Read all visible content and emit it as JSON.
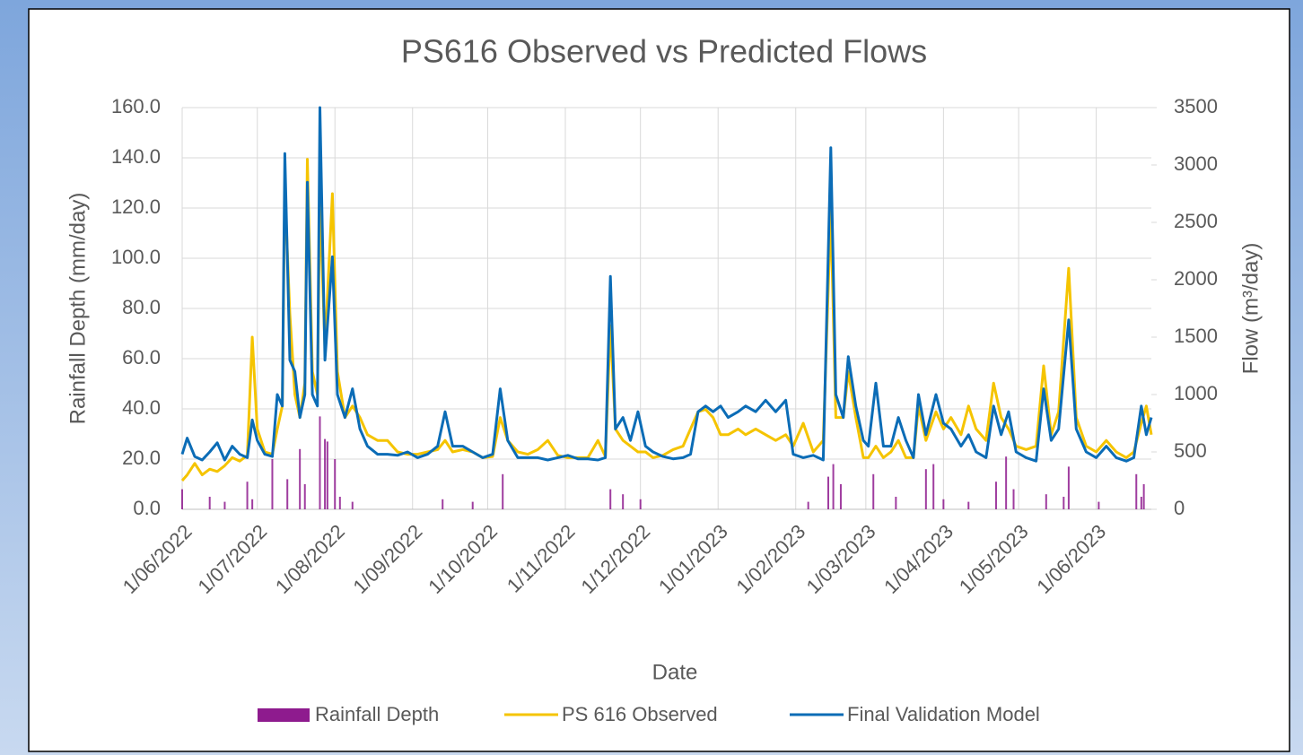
{
  "chart_data": {
    "type": "line",
    "title": "PS616 Observed vs Predicted Flows",
    "x_label": "Date",
    "y_label": "Rainfall Depth (mm/day)",
    "y2_label": "Flow (m³/day)",
    "xlim": [
      "2022-06-01",
      "2023-06-23"
    ],
    "xticks": [
      {
        "value": "2022-06-01",
        "label": "1/06/2022"
      },
      {
        "value": "2022-07-01",
        "label": "1/07/2022"
      },
      {
        "value": "2022-08-01",
        "label": "1/08/2022"
      },
      {
        "value": "2022-09-01",
        "label": "1/09/2022"
      },
      {
        "value": "2022-10-01",
        "label": "1/10/2022"
      },
      {
        "value": "2022-11-01",
        "label": "1/11/2022"
      },
      {
        "value": "2022-12-01",
        "label": "1/12/2022"
      },
      {
        "value": "2023-01-01",
        "label": "1/01/2023"
      },
      {
        "value": "2023-02-01",
        "label": "1/02/2023"
      },
      {
        "value": "2023-03-01",
        "label": "1/03/2023"
      },
      {
        "value": "2023-04-01",
        "label": "1/04/2023"
      },
      {
        "value": "2023-05-01",
        "label": "1/05/2023"
      },
      {
        "value": "2023-06-01",
        "label": "1/06/2023"
      }
    ],
    "ylim": [
      0,
      160
    ],
    "yticks": [
      {
        "value": 0,
        "label": "0.0"
      },
      {
        "value": 20,
        "label": "20.0"
      },
      {
        "value": 40,
        "label": "40.0"
      },
      {
        "value": 60,
        "label": "60.0"
      },
      {
        "value": 80,
        "label": "80.0"
      },
      {
        "value": 100,
        "label": "100.0"
      },
      {
        "value": 120,
        "label": "120.0"
      },
      {
        "value": 140,
        "label": "140.0"
      },
      {
        "value": 160,
        "label": "160.0"
      }
    ],
    "y2lim": [
      0,
      3500
    ],
    "y2ticks": [
      0,
      500,
      1000,
      1500,
      2000,
      2500,
      3000,
      3500
    ],
    "grid": true,
    "legend": "bottom",
    "x": [
      "2022-06-01",
      "2022-06-03",
      "2022-06-06",
      "2022-06-09",
      "2022-06-12",
      "2022-06-15",
      "2022-06-18",
      "2022-06-21",
      "2022-06-24",
      "2022-06-27",
      "2022-06-29",
      "2022-07-01",
      "2022-07-04",
      "2022-07-07",
      "2022-07-09",
      "2022-07-11",
      "2022-07-12",
      "2022-07-14",
      "2022-07-16",
      "2022-07-18",
      "2022-07-20",
      "2022-07-21",
      "2022-07-23",
      "2022-07-25",
      "2022-07-26",
      "2022-07-28",
      "2022-07-31",
      "2022-08-02",
      "2022-08-05",
      "2022-08-08",
      "2022-08-11",
      "2022-08-14",
      "2022-08-18",
      "2022-08-22",
      "2022-08-26",
      "2022-08-30",
      "2022-09-03",
      "2022-09-07",
      "2022-09-11",
      "2022-09-14",
      "2022-09-17",
      "2022-09-21",
      "2022-09-25",
      "2022-09-29",
      "2022-10-03",
      "2022-10-06",
      "2022-10-09",
      "2022-10-13",
      "2022-10-17",
      "2022-10-21",
      "2022-10-25",
      "2022-10-29",
      "2022-11-02",
      "2022-11-06",
      "2022-11-10",
      "2022-11-14",
      "2022-11-17",
      "2022-11-19",
      "2022-11-21",
      "2022-11-24",
      "2022-11-27",
      "2022-11-30",
      "2022-12-03",
      "2022-12-06",
      "2022-12-10",
      "2022-12-14",
      "2022-12-18",
      "2022-12-21",
      "2022-12-24",
      "2022-12-27",
      "2022-12-30",
      "2023-01-02",
      "2023-01-05",
      "2023-01-09",
      "2023-01-12",
      "2023-01-16",
      "2023-01-20",
      "2023-01-24",
      "2023-01-28",
      "2023-01-31",
      "2023-02-04",
      "2023-02-08",
      "2023-02-12",
      "2023-02-15",
      "2023-02-17",
      "2023-02-20",
      "2023-02-22",
      "2023-02-25",
      "2023-02-28",
      "2023-03-02",
      "2023-03-05",
      "2023-03-08",
      "2023-03-11",
      "2023-03-14",
      "2023-03-17",
      "2023-03-20",
      "2023-03-22",
      "2023-03-25",
      "2023-03-29",
      "2023-04-01",
      "2023-04-04",
      "2023-04-08",
      "2023-04-11",
      "2023-04-14",
      "2023-04-18",
      "2023-04-21",
      "2023-04-24",
      "2023-04-27",
      "2023-04-30",
      "2023-05-04",
      "2023-05-08",
      "2023-05-11",
      "2023-05-14",
      "2023-05-17",
      "2023-05-21",
      "2023-05-24",
      "2023-05-28",
      "2023-06-01",
      "2023-06-05",
      "2023-06-09",
      "2023-06-13",
      "2023-06-16",
      "2023-06-19",
      "2023-06-21",
      "2023-06-23"
    ],
    "series": [
      {
        "name": "Rainfall Depth",
        "type": "bar",
        "color": "#8e1b8e",
        "x": [
          "2022-06-01",
          "2022-06-12",
          "2022-06-18",
          "2022-06-27",
          "2022-06-29",
          "2022-07-07",
          "2022-07-13",
          "2022-07-18",
          "2022-07-20",
          "2022-07-26",
          "2022-07-28",
          "2022-07-29",
          "2022-08-01",
          "2022-08-03",
          "2022-08-08",
          "2022-09-13",
          "2022-09-25",
          "2022-10-07",
          "2022-11-19",
          "2022-11-24",
          "2022-12-01",
          "2023-02-06",
          "2023-02-14",
          "2023-02-16",
          "2023-02-19",
          "2023-03-04",
          "2023-03-13",
          "2023-03-25",
          "2023-03-28",
          "2023-04-01",
          "2023-04-11",
          "2023-04-22",
          "2023-04-26",
          "2023-04-29",
          "2023-05-12",
          "2023-05-19",
          "2023-05-21",
          "2023-06-02",
          "2023-06-17",
          "2023-06-19",
          "2023-06-20"
        ],
        "values": [
          8,
          5,
          3,
          11,
          4,
          20,
          12,
          24,
          10,
          37,
          28,
          27,
          20,
          5,
          3,
          4,
          3,
          14,
          8,
          6,
          4,
          3,
          13,
          18,
          10,
          14,
          5,
          16,
          18,
          4,
          3,
          11,
          21,
          8,
          6,
          5,
          17,
          3,
          14,
          5,
          10
        ]
      },
      {
        "name": "PS 616 Observed",
        "type": "line",
        "axis": "y2",
        "color": "#f5c400",
        "values": [
          250,
          300,
          400,
          300,
          350,
          330,
          380,
          450,
          420,
          470,
          1500,
          700,
          500,
          480,
          700,
          900,
          2800,
          1700,
          1000,
          800,
          1100,
          3050,
          1200,
          1000,
          2700,
          1400,
          2750,
          1200,
          800,
          900,
          800,
          650,
          600,
          600,
          500,
          480,
          480,
          500,
          520,
          600,
          500,
          520,
          500,
          450,
          460,
          800,
          600,
          500,
          480,
          520,
          600,
          470,
          450,
          450,
          450,
          600,
          460,
          1600,
          700,
          600,
          550,
          500,
          500,
          450,
          470,
          520,
          550,
          700,
          850,
          870,
          800,
          650,
          650,
          700,
          650,
          700,
          650,
          600,
          650,
          550,
          750,
          500,
          600,
          2600,
          800,
          800,
          1200,
          800,
          450,
          450,
          550,
          450,
          500,
          600,
          450,
          450,
          900,
          600,
          850,
          700,
          800,
          650,
          900,
          700,
          600,
          1100,
          800,
          700,
          550,
          520,
          550,
          1250,
          650,
          850,
          2100,
          800,
          550,
          500,
          600,
          500,
          450,
          500,
          750,
          900,
          650
        ]
      },
      {
        "name": "Final Validation Model",
        "type": "line",
        "axis": "y2",
        "color": "#0b6cb6",
        "values": [
          480,
          620,
          460,
          430,
          500,
          580,
          430,
          550,
          480,
          450,
          780,
          600,
          480,
          460,
          1000,
          900,
          3100,
          1300,
          1200,
          800,
          1000,
          2850,
          1000,
          900,
          3500,
          1300,
          2200,
          1000,
          800,
          1050,
          700,
          550,
          480,
          480,
          470,
          500,
          450,
          480,
          550,
          850,
          550,
          550,
          500,
          450,
          480,
          1050,
          600,
          450,
          450,
          450,
          430,
          450,
          470,
          440,
          440,
          430,
          450,
          2030,
          700,
          800,
          600,
          850,
          550,
          500,
          460,
          440,
          450,
          480,
          850,
          900,
          850,
          900,
          800,
          850,
          900,
          850,
          950,
          850,
          950,
          480,
          450,
          470,
          430,
          3150,
          1000,
          800,
          1330,
          900,
          600,
          550,
          1100,
          550,
          550,
          800,
          600,
          450,
          1000,
          650,
          1000,
          750,
          700,
          550,
          650,
          500,
          450,
          900,
          650,
          850,
          500,
          450,
          420,
          1050,
          600,
          700,
          1650,
          700,
          500,
          450,
          550,
          450,
          420,
          450,
          900,
          650,
          800
        ]
      }
    ]
  }
}
